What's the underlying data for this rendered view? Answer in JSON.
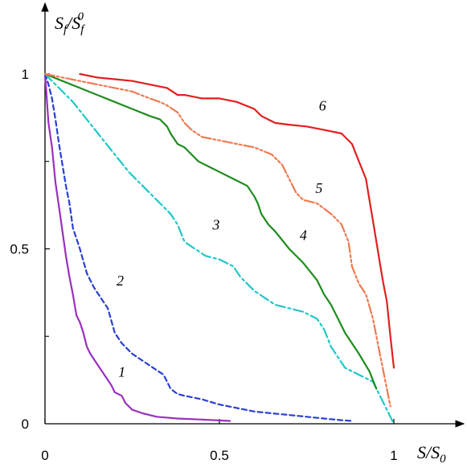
{
  "chart_data": {
    "type": "line",
    "title": "",
    "xlabel": {
      "main": "S/S",
      "sub": "0"
    },
    "ylabel": {
      "main": "S",
      "sub": "f",
      "mid": "/S",
      "sub2": "f",
      "sup": "0"
    },
    "xlim": [
      0,
      1.2
    ],
    "ylim": [
      0,
      1.15
    ],
    "x_ticks": [
      {
        "value": 0,
        "label": "0"
      },
      {
        "value": 0.5,
        "label": "0.5"
      },
      {
        "value": 1,
        "label": "1"
      }
    ],
    "y_ticks": [
      {
        "value": 0,
        "label": "0"
      },
      {
        "value": 0.5,
        "label": "0.5"
      },
      {
        "value": 1,
        "label": "1"
      }
    ],
    "grid": false,
    "legend": "none",
    "series": [
      {
        "label": "1",
        "color": "#9b2fbf",
        "dash": "",
        "label_pos": [
          0.21,
          0.135
        ],
        "x": [
          0,
          0.005,
          0.01,
          0.02,
          0.03,
          0.04,
          0.05,
          0.06,
          0.07,
          0.08,
          0.09,
          0.1,
          0.11,
          0.12,
          0.13,
          0.15,
          0.17,
          0.19,
          0.2,
          0.22,
          0.23,
          0.25,
          0.28,
          0.32,
          0.38,
          0.45,
          0.53
        ],
        "y": [
          1,
          0.93,
          0.86,
          0.79,
          0.69,
          0.62,
          0.55,
          0.48,
          0.42,
          0.37,
          0.31,
          0.29,
          0.26,
          0.22,
          0.2,
          0.17,
          0.14,
          0.11,
          0.09,
          0.08,
          0.06,
          0.04,
          0.03,
          0.02,
          0.015,
          0.012,
          0.008
        ]
      },
      {
        "label": "2",
        "color": "#2b3fd0",
        "dash": "6,4",
        "label_pos": [
          0.205,
          0.395
        ],
        "x": [
          0,
          0.01,
          0.02,
          0.03,
          0.04,
          0.05,
          0.06,
          0.07,
          0.08,
          0.1,
          0.12,
          0.14,
          0.16,
          0.18,
          0.2,
          0.22,
          0.25,
          0.28,
          0.31,
          0.34,
          0.36,
          0.38,
          0.4,
          0.45,
          0.5,
          0.55,
          0.6,
          0.65,
          0.7,
          0.75,
          0.8,
          0.85,
          0.88
        ],
        "y": [
          1,
          0.97,
          0.93,
          0.87,
          0.8,
          0.74,
          0.68,
          0.63,
          0.56,
          0.5,
          0.43,
          0.39,
          0.36,
          0.33,
          0.26,
          0.23,
          0.2,
          0.18,
          0.16,
          0.14,
          0.1,
          0.085,
          0.08,
          0.07,
          0.055,
          0.045,
          0.035,
          0.03,
          0.025,
          0.02,
          0.015,
          0.01,
          0.008
        ]
      },
      {
        "label": "3",
        "color": "#1fc7c7",
        "dash": "12,4,3,4",
        "label_pos": [
          0.48,
          0.555
        ],
        "x": [
          0,
          0.04,
          0.08,
          0.12,
          0.16,
          0.2,
          0.24,
          0.28,
          0.32,
          0.36,
          0.38,
          0.4,
          0.43,
          0.46,
          0.5,
          0.54,
          0.56,
          0.6,
          0.63,
          0.66,
          0.7,
          0.74,
          0.78,
          0.8,
          0.82,
          0.86,
          0.9,
          0.94,
          0.97,
          1.0
        ],
        "y": [
          1,
          0.96,
          0.92,
          0.87,
          0.82,
          0.77,
          0.72,
          0.68,
          0.64,
          0.6,
          0.57,
          0.52,
          0.5,
          0.48,
          0.47,
          0.45,
          0.42,
          0.38,
          0.36,
          0.34,
          0.33,
          0.32,
          0.3,
          0.27,
          0.22,
          0.16,
          0.14,
          0.12,
          0.06,
          0
        ]
      },
      {
        "label": "4",
        "color": "#1e8c1e",
        "dash": "",
        "label_pos": [
          0.73,
          0.525
        ],
        "x": [
          0,
          0.05,
          0.1,
          0.15,
          0.2,
          0.25,
          0.3,
          0.33,
          0.35,
          0.36,
          0.38,
          0.4,
          0.42,
          0.44,
          0.46,
          0.5,
          0.54,
          0.58,
          0.6,
          0.61,
          0.62,
          0.64,
          0.66,
          0.7,
          0.74,
          0.78,
          0.8,
          0.82,
          0.84,
          0.86,
          0.9,
          0.93,
          0.95
        ],
        "y": [
          1,
          0.98,
          0.96,
          0.94,
          0.92,
          0.9,
          0.88,
          0.87,
          0.85,
          0.83,
          0.8,
          0.79,
          0.77,
          0.75,
          0.74,
          0.72,
          0.7,
          0.68,
          0.65,
          0.63,
          0.6,
          0.57,
          0.55,
          0.5,
          0.46,
          0.41,
          0.37,
          0.34,
          0.3,
          0.26,
          0.2,
          0.15,
          0.1
        ]
      },
      {
        "label": "5",
        "color": "#ef7a52",
        "dash": "12,3,3,3,3,3",
        "label_pos": [
          0.775,
          0.66
        ],
        "x": [
          0,
          0.05,
          0.1,
          0.15,
          0.2,
          0.25,
          0.3,
          0.33,
          0.35,
          0.38,
          0.4,
          0.42,
          0.45,
          0.5,
          0.55,
          0.6,
          0.65,
          0.68,
          0.7,
          0.72,
          0.74,
          0.78,
          0.82,
          0.85,
          0.87,
          0.88,
          0.9,
          0.92,
          0.94,
          0.96,
          0.98,
          0.99
        ],
        "y": [
          1,
          0.99,
          0.98,
          0.97,
          0.96,
          0.95,
          0.93,
          0.92,
          0.91,
          0.89,
          0.86,
          0.84,
          0.82,
          0.81,
          0.8,
          0.79,
          0.77,
          0.74,
          0.7,
          0.66,
          0.64,
          0.63,
          0.6,
          0.57,
          0.52,
          0.45,
          0.4,
          0.37,
          0.3,
          0.2,
          0.1,
          0.05
        ]
      },
      {
        "label": "6",
        "color": "#e21f1f",
        "dash": "",
        "label_pos": [
          0.785,
          0.895
        ],
        "x": [
          0.1,
          0.15,
          0.2,
          0.25,
          0.3,
          0.35,
          0.38,
          0.4,
          0.45,
          0.5,
          0.55,
          0.6,
          0.62,
          0.64,
          0.66,
          0.7,
          0.75,
          0.8,
          0.85,
          0.88,
          0.9,
          0.92,
          0.93,
          0.94,
          0.95,
          0.96,
          0.97,
          0.98,
          0.99,
          1.0
        ],
        "y": [
          1,
          0.99,
          0.985,
          0.98,
          0.97,
          0.96,
          0.94,
          0.94,
          0.93,
          0.93,
          0.92,
          0.9,
          0.88,
          0.87,
          0.86,
          0.855,
          0.85,
          0.84,
          0.83,
          0.8,
          0.75,
          0.7,
          0.64,
          0.58,
          0.52,
          0.46,
          0.4,
          0.35,
          0.25,
          0.16
        ]
      }
    ]
  }
}
